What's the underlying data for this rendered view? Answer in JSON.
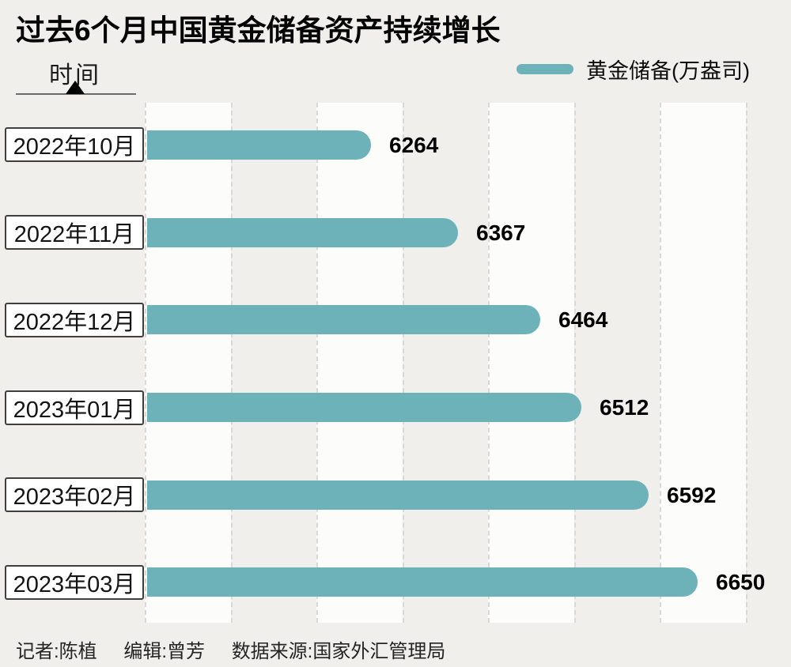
{
  "page": {
    "background_color": "#f0efec",
    "stripe_color": "#fcfcfb",
    "gridline_color": "#d9d8d5"
  },
  "chart_data": {
    "type": "bar",
    "orientation": "horizontal",
    "title": "过去6个月中国黄金储备资产持续增长",
    "axis_label": "时间",
    "legend": "黄金储备(万盎司)",
    "legend_position": "top-right",
    "categories": [
      "2022年10月",
      "2022年11月",
      "2022年12月",
      "2023年01月",
      "2023年02月",
      "2023年03月"
    ],
    "values": [
      6264,
      6367,
      6464,
      6512,
      6592,
      6650
    ],
    "xlim": [
      6000,
      6700
    ],
    "gridline_interval": 100,
    "gridline_style": "dashed",
    "grid": true,
    "bar_color": "#6eb2b9"
  },
  "footer": {
    "reporter": "记者:陈植",
    "editor": "编辑:曾芳",
    "source": "数据来源:国家外汇管理局"
  }
}
